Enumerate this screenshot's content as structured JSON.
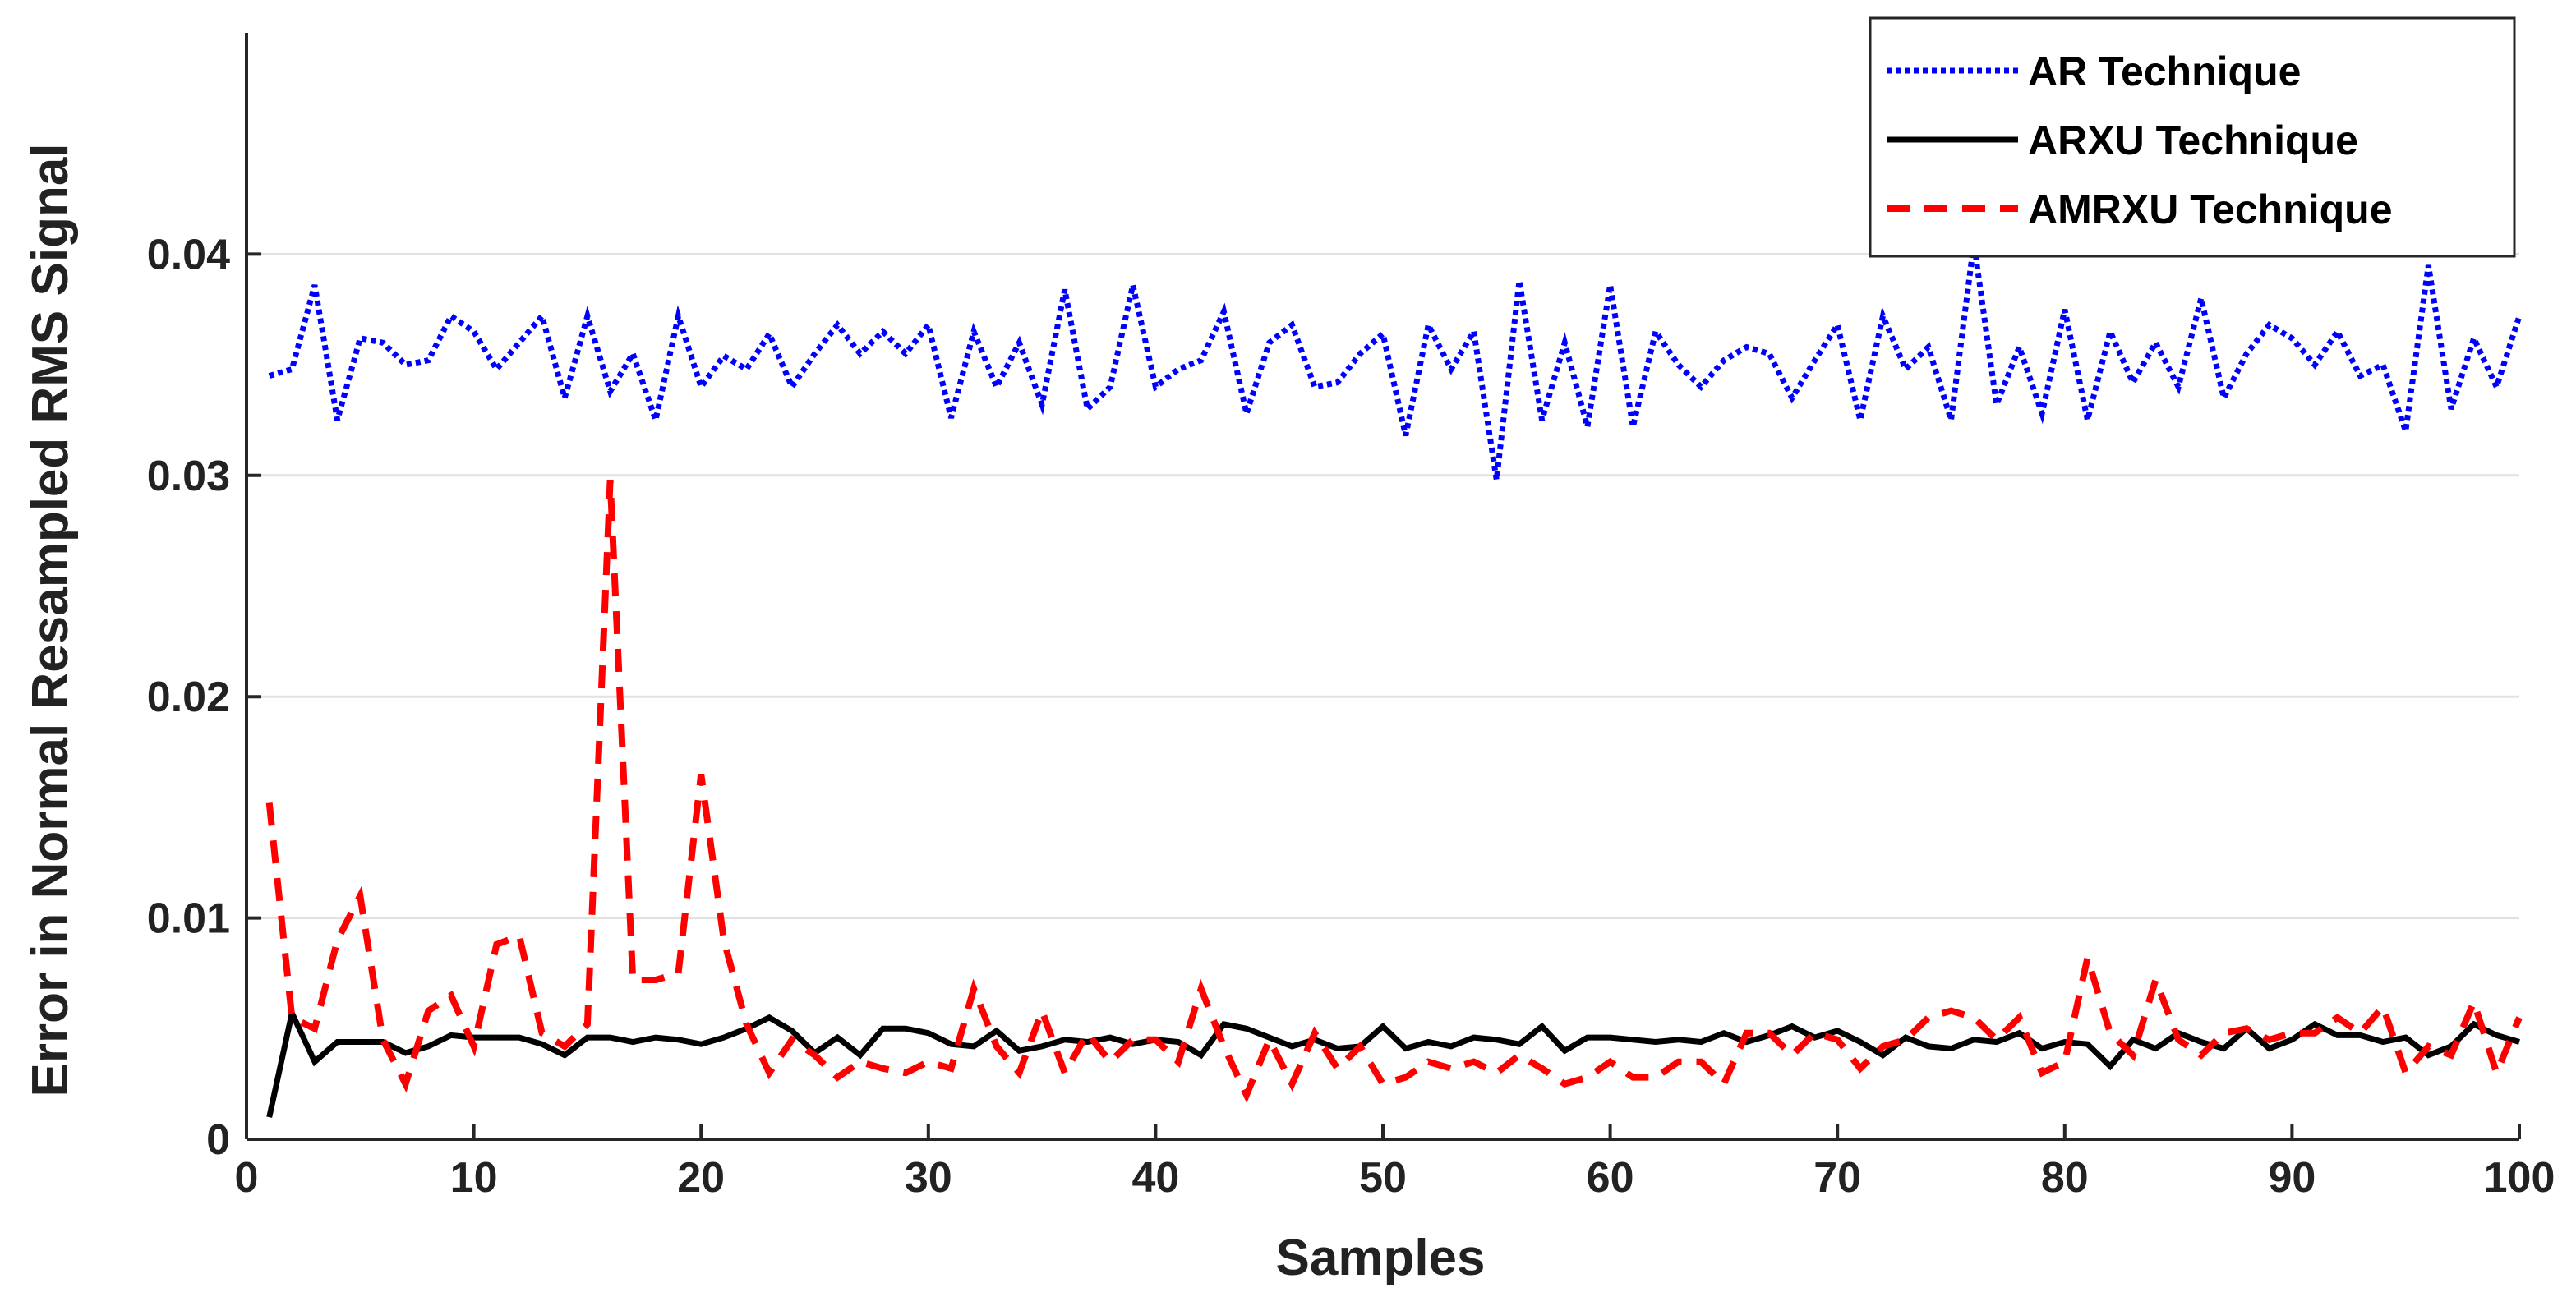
{
  "chart_data": {
    "type": "line",
    "title": "",
    "xlabel": "Samples",
    "ylabel": "Error in Normal Resampled RMS Signal",
    "xlim": [
      0,
      100
    ],
    "ylim": [
      0,
      0.05
    ],
    "xticks": [
      0,
      10,
      20,
      30,
      40,
      50,
      60,
      70,
      80,
      90,
      100
    ],
    "xtick_labels": [
      "0",
      "10",
      "20",
      "30",
      "40",
      "50",
      "60",
      "70",
      "80",
      "90",
      "100"
    ],
    "yticks": [
      0,
      0.01,
      0.02,
      0.03,
      0.04
    ],
    "ytick_labels": [
      "0",
      "0.01",
      "0.02",
      "0.03",
      "0.04"
    ],
    "grid": true,
    "legend_position": "top-right",
    "x": [
      1,
      2,
      3,
      4,
      5,
      6,
      7,
      8,
      9,
      10,
      11,
      12,
      13,
      14,
      15,
      16,
      17,
      18,
      19,
      20,
      21,
      22,
      23,
      24,
      25,
      26,
      27,
      28,
      29,
      30,
      31,
      32,
      33,
      34,
      35,
      36,
      37,
      38,
      39,
      40,
      41,
      42,
      43,
      44,
      45,
      46,
      47,
      48,
      49,
      50,
      51,
      52,
      53,
      54,
      55,
      56,
      57,
      58,
      59,
      60,
      61,
      62,
      63,
      64,
      65,
      66,
      67,
      68,
      69,
      70,
      71,
      72,
      73,
      74,
      75,
      76,
      77,
      78,
      79,
      80,
      81,
      82,
      83,
      84,
      85,
      86,
      87,
      88,
      89,
      90,
      91,
      92,
      93,
      94,
      95,
      96,
      97,
      98,
      99,
      100
    ],
    "series": [
      {
        "name": "AR Technique",
        "color": "#0000ff",
        "style": "dotted",
        "values": [
          0.0345,
          0.0348,
          0.0386,
          0.0325,
          0.0362,
          0.036,
          0.035,
          0.0352,
          0.0372,
          0.0365,
          0.0348,
          0.036,
          0.0372,
          0.0335,
          0.0372,
          0.0338,
          0.0355,
          0.0325,
          0.0372,
          0.034,
          0.0354,
          0.0348,
          0.0364,
          0.034,
          0.0355,
          0.0368,
          0.0355,
          0.0365,
          0.0355,
          0.0368,
          0.0326,
          0.0365,
          0.034,
          0.036,
          0.0332,
          0.0384,
          0.033,
          0.034,
          0.0386,
          0.034,
          0.0348,
          0.0352,
          0.0374,
          0.0328,
          0.036,
          0.0368,
          0.034,
          0.0342,
          0.0355,
          0.0364,
          0.0318,
          0.0368,
          0.0348,
          0.0365,
          0.0298,
          0.0388,
          0.0325,
          0.036,
          0.0322,
          0.0386,
          0.0322,
          0.0365,
          0.035,
          0.034,
          0.0352,
          0.0358,
          0.0355,
          0.0335,
          0.0352,
          0.0368,
          0.0325,
          0.0372,
          0.0348,
          0.0358,
          0.0325,
          0.0405,
          0.0332,
          0.0358,
          0.0328,
          0.0375,
          0.0325,
          0.0365,
          0.0342,
          0.036,
          0.034,
          0.038,
          0.0335,
          0.0355,
          0.0368,
          0.0362,
          0.035,
          0.0365,
          0.0345,
          0.035,
          0.032,
          0.0395,
          0.033,
          0.0362,
          0.034,
          0.0372
        ]
      },
      {
        "name": "ARXU Technique",
        "color": "#000000",
        "style": "solid",
        "values": [
          0.001,
          0.0057,
          0.0035,
          0.0044,
          0.0044,
          0.0044,
          0.0039,
          0.0042,
          0.0047,
          0.0046,
          0.0046,
          0.0046,
          0.0043,
          0.0038,
          0.0046,
          0.0046,
          0.0044,
          0.0046,
          0.0045,
          0.0043,
          0.0046,
          0.005,
          0.0055,
          0.0049,
          0.0039,
          0.0046,
          0.0038,
          0.005,
          0.005,
          0.0048,
          0.0043,
          0.0042,
          0.0049,
          0.004,
          0.0042,
          0.0045,
          0.0044,
          0.0046,
          0.0043,
          0.0045,
          0.0044,
          0.0038,
          0.0052,
          0.005,
          0.0046,
          0.0042,
          0.0045,
          0.0041,
          0.0042,
          0.0051,
          0.0041,
          0.0044,
          0.0042,
          0.0046,
          0.0045,
          0.0043,
          0.0051,
          0.004,
          0.0046,
          0.0046,
          0.0045,
          0.0044,
          0.0045,
          0.0044,
          0.0048,
          0.0044,
          0.0047,
          0.0051,
          0.0046,
          0.0049,
          0.0044,
          0.0038,
          0.0046,
          0.0042,
          0.0041,
          0.0045,
          0.0044,
          0.0048,
          0.0041,
          0.0044,
          0.0043,
          0.0033,
          0.0045,
          0.0041,
          0.0048,
          0.0044,
          0.0041,
          0.005,
          0.0041,
          0.0045,
          0.0052,
          0.0047,
          0.0047,
          0.0044,
          0.0046,
          0.0038,
          0.0042,
          0.0052,
          0.0047,
          0.0044
        ]
      },
      {
        "name": "AMRXU Technique",
        "color": "#ff0000",
        "style": "dashed",
        "values": [
          0.0152,
          0.0055,
          0.005,
          0.009,
          0.011,
          0.0045,
          0.0025,
          0.0058,
          0.0065,
          0.0042,
          0.0088,
          0.0092,
          0.0048,
          0.0042,
          0.0052,
          0.0298,
          0.0072,
          0.0072,
          0.0075,
          0.0165,
          0.009,
          0.0052,
          0.003,
          0.0045,
          0.0038,
          0.0028,
          0.0035,
          0.0032,
          0.003,
          0.0035,
          0.0032,
          0.0068,
          0.0042,
          0.003,
          0.0058,
          0.003,
          0.0048,
          0.0035,
          0.0045,
          0.0045,
          0.0035,
          0.0068,
          0.0042,
          0.002,
          0.0045,
          0.0025,
          0.0048,
          0.0032,
          0.0042,
          0.0025,
          0.0028,
          0.0035,
          0.0032,
          0.0035,
          0.003,
          0.0038,
          0.0032,
          0.0025,
          0.0028,
          0.0035,
          0.0028,
          0.0028,
          0.0035,
          0.0035,
          0.0025,
          0.0048,
          0.0048,
          0.0038,
          0.0048,
          0.0045,
          0.0032,
          0.0042,
          0.0045,
          0.0055,
          0.0058,
          0.0055,
          0.0045,
          0.0055,
          0.003,
          0.0035,
          0.0082,
          0.0048,
          0.0038,
          0.0072,
          0.0045,
          0.0038,
          0.0048,
          0.005,
          0.0045,
          0.0048,
          0.0048,
          0.0055,
          0.0048,
          0.006,
          0.003,
          0.0042,
          0.0038,
          0.0062,
          0.003,
          0.0055
        ]
      }
    ]
  }
}
